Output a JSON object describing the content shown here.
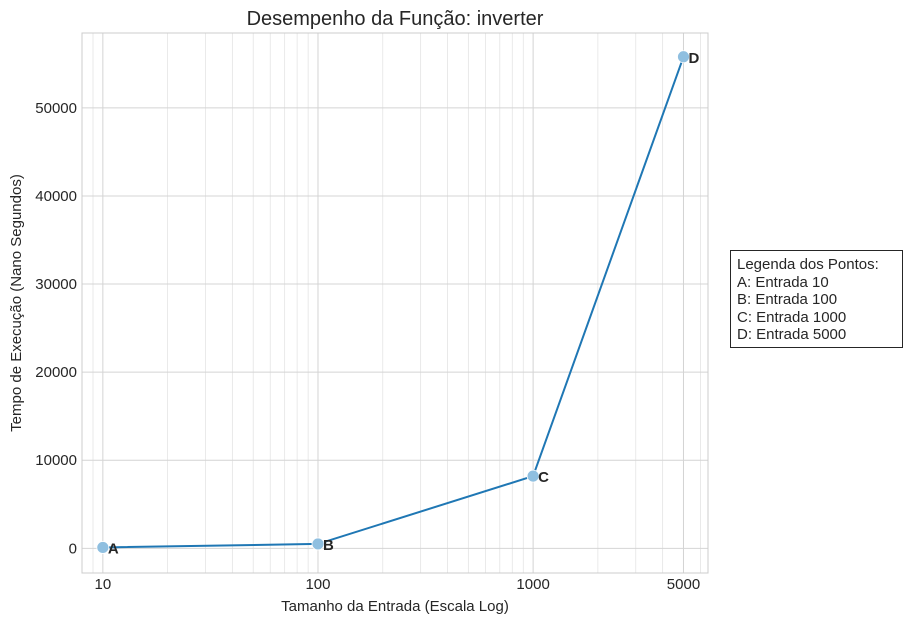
{
  "chart_data": {
    "type": "line",
    "title": "Desempenho da Função: inverter",
    "xlabel": "Tamanho da Entrada (Escala Log)",
    "ylabel": "Tempo de Execução (Nano Segundos)",
    "x_scale": "log",
    "xlim": [
      8,
      6500
    ],
    "ylim": [
      -2800,
      58500
    ],
    "x_ticks": [
      10,
      100,
      1000,
      5000
    ],
    "x_tick_labels": [
      "10",
      "100",
      "1000",
      "5000"
    ],
    "y_ticks": [
      0,
      10000,
      20000,
      30000,
      40000,
      50000
    ],
    "y_tick_labels": [
      "0",
      "10000",
      "20000",
      "30000",
      "40000",
      "50000"
    ],
    "grid": true,
    "series": [
      {
        "color": "#1f77b4",
        "marker_color": "#8fbfe0",
        "points": [
          {
            "x": 10,
            "y": 100,
            "label": "A"
          },
          {
            "x": 100,
            "y": 500,
            "label": "B"
          },
          {
            "x": 1000,
            "y": 8200,
            "label": "C"
          },
          {
            "x": 5000,
            "y": 55800,
            "label": "D"
          }
        ]
      }
    ],
    "legend": {
      "placement": "outside-right",
      "title": "Legenda dos Pontos:",
      "entries": [
        "A: Entrada 10",
        "B: Entrada 100",
        "C: Entrada 1000",
        "D: Entrada 5000"
      ]
    }
  }
}
